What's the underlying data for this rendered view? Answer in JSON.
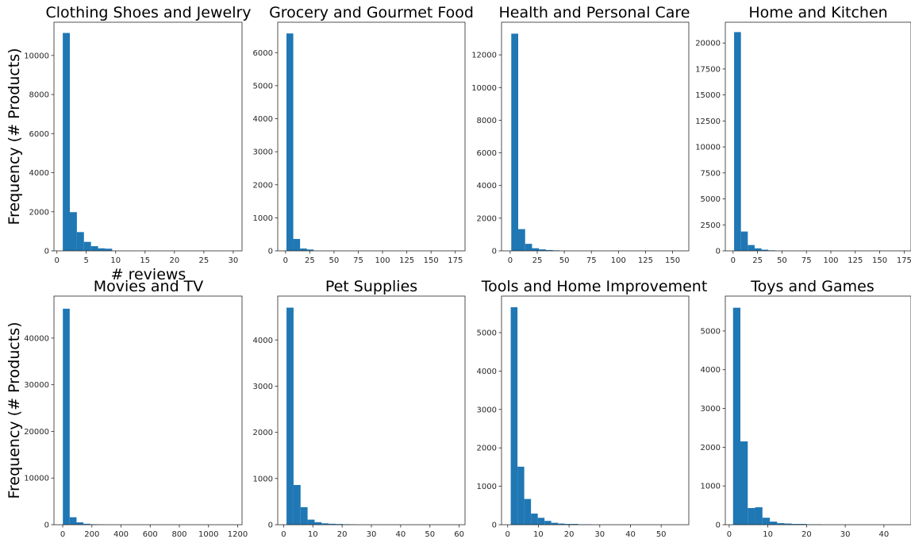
{
  "figure": {
    "ylabel_row1": "Frequency (# Products)",
    "ylabel_row2": "Frequency (# Products)",
    "xlabel_panel1": "# reviews",
    "bar_color": "#1f77b4"
  },
  "chart_data": [
    {
      "type": "bar",
      "title": "Clothing Shoes and Jewelry",
      "xlim": [
        -0.5,
        31.5
      ],
      "ylim": [
        0,
        11700
      ],
      "xticks": [
        0,
        5,
        10,
        15,
        20,
        25,
        30
      ],
      "yticks": [
        0,
        2000,
        4000,
        6000,
        8000,
        10000
      ],
      "bin_edges": [
        1,
        2.2,
        3.4,
        4.6,
        5.8,
        7.0,
        8.2,
        9.4
      ],
      "values": [
        11150,
        1980,
        960,
        460,
        240,
        130,
        110
      ]
    },
    {
      "type": "bar",
      "title": "Grocery and Gourmet Food",
      "xlim": [
        -8,
        185
      ],
      "ylim": [
        0,
        6920
      ],
      "xticks": [
        0,
        25,
        50,
        75,
        100,
        125,
        150,
        175
      ],
      "yticks": [
        0,
        1000,
        2000,
        3000,
        4000,
        5000,
        6000
      ],
      "bin_edges": [
        1,
        8,
        15,
        22,
        29
      ],
      "values": [
        6580,
        360,
        70,
        40
      ]
    },
    {
      "type": "bar",
      "title": "Health and Personal Care",
      "xlim": [
        -8,
        165
      ],
      "ylim": [
        0,
        14000
      ],
      "xticks": [
        0,
        25,
        50,
        75,
        100,
        125,
        150
      ],
      "yticks": [
        0,
        2000,
        4000,
        6000,
        8000,
        10000,
        12000
      ],
      "bin_edges": [
        1,
        7.4,
        13.8,
        20.2,
        26.6,
        33,
        39.4,
        45.8
      ],
      "values": [
        13300,
        1330,
        430,
        160,
        90,
        50,
        30
      ]
    },
    {
      "type": "bar",
      "title": "Home and Kitchen",
      "xlim": [
        -8,
        182
      ],
      "ylim": [
        0,
        22000
      ],
      "xticks": [
        0,
        25,
        50,
        75,
        100,
        125,
        150,
        175
      ],
      "yticks": [
        0,
        2500,
        5000,
        7500,
        10000,
        12500,
        15000,
        17500,
        20000
      ],
      "bin_edges": [
        1,
        8,
        15,
        22,
        29,
        36,
        43
      ],
      "values": [
        21050,
        1860,
        560,
        240,
        110,
        50
      ]
    },
    {
      "type": "bar",
      "title": "Movies and TV",
      "xlim": [
        -60,
        1230
      ],
      "ylim": [
        0,
        49000
      ],
      "xticks": [
        0,
        200,
        400,
        600,
        800,
        1000,
        1200
      ],
      "yticks": [
        0,
        10000,
        20000,
        30000,
        40000
      ],
      "bin_edges": [
        1,
        48,
        95,
        142,
        189,
        236,
        283
      ],
      "values": [
        46300,
        1600,
        500,
        200,
        100,
        60
      ]
    },
    {
      "type": "bar",
      "title": "Pet Supplies",
      "xlim": [
        -2,
        62
      ],
      "ylim": [
        0,
        4950
      ],
      "xticks": [
        0,
        10,
        20,
        30,
        40,
        50,
        60
      ],
      "yticks": [
        0,
        1000,
        2000,
        3000,
        4000
      ],
      "bin_edges": [
        1,
        3.4,
        5.8,
        8.2,
        10.6,
        13,
        15.4,
        17.8,
        20.2,
        22.6,
        25
      ],
      "values": [
        4700,
        860,
        380,
        110,
        55,
        30,
        20,
        15,
        10,
        8
      ]
    },
    {
      "type": "bar",
      "title": "Tools and Home Improvement",
      "xlim": [
        -2,
        59
      ],
      "ylim": [
        0,
        5950
      ],
      "xticks": [
        0,
        10,
        20,
        30,
        40,
        50
      ],
      "yticks": [
        0,
        1000,
        2000,
        3000,
        4000,
        5000
      ],
      "bin_edges": [
        1,
        3.2,
        5.4,
        7.6,
        9.8,
        12,
        14.2,
        16.4,
        18.6,
        20.8,
        23,
        25.2,
        27.4
      ],
      "values": [
        5660,
        1510,
        670,
        290,
        180,
        100,
        50,
        30,
        20,
        20,
        10,
        10
      ]
    },
    {
      "type": "bar",
      "title": "Toys and Games",
      "xlim": [
        -1,
        47
      ],
      "ylim": [
        0,
        5900
      ],
      "xticks": [
        0,
        10,
        20,
        30,
        40
      ],
      "yticks": [
        0,
        1000,
        2000,
        3000,
        4000,
        5000
      ],
      "bin_edges": [
        1,
        2.9,
        4.8,
        6.7,
        8.6,
        10.5,
        12.4,
        14.3,
        16.2,
        18.1,
        20,
        21.9,
        23.8
      ],
      "values": [
        5600,
        2150,
        430,
        450,
        180,
        80,
        40,
        30,
        20,
        20,
        10,
        10
      ]
    }
  ]
}
